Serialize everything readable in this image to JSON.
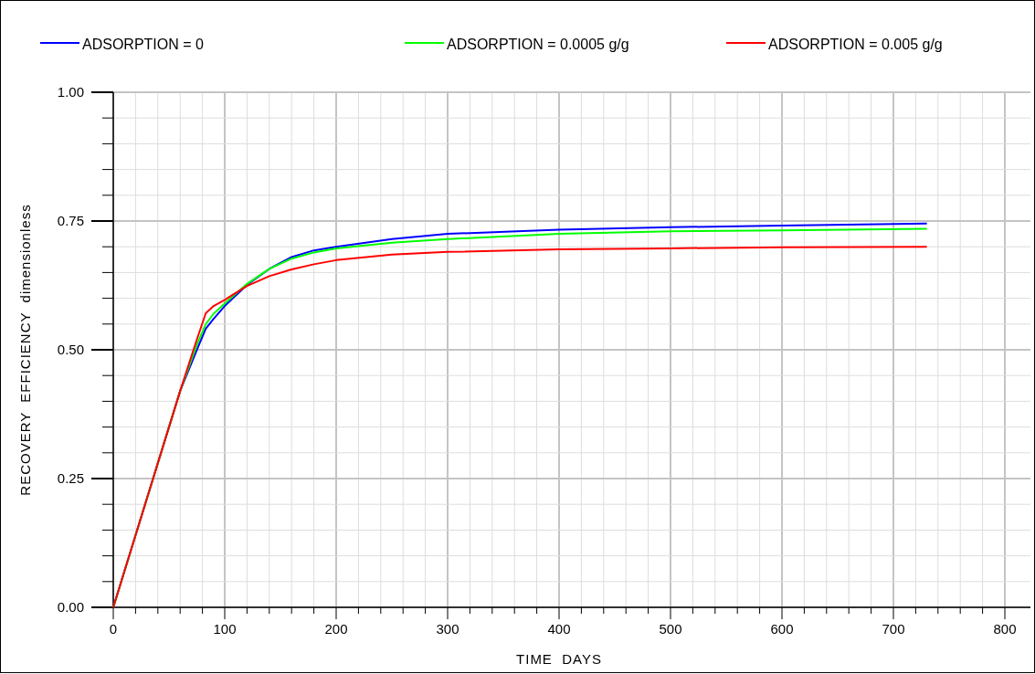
{
  "chart_data": {
    "type": "line",
    "xlabel": "TIME  DAYS",
    "ylabel": "RECOVERY  EFFICIENCY  dimensionless",
    "xlim": [
      0,
      800
    ],
    "ylim": [
      0,
      1
    ],
    "xticks": [
      0,
      {
        "value": 20,
        "label": null
      },
      {
        "value": 40,
        "label": null
      },
      {
        "value": 60,
        "label": null
      },
      {
        "value": 80,
        "label": null
      },
      100,
      {
        "value": 120,
        "label": null
      },
      {
        "value": 140,
        "label": null
      },
      {
        "value": 160,
        "label": null
      },
      {
        "value": 180,
        "label": null
      },
      200,
      {
        "value": 220,
        "label": null
      },
      {
        "value": 240,
        "label": null
      },
      {
        "value": 260,
        "label": null
      },
      {
        "value": 280,
        "label": null
      },
      300,
      {
        "value": 320,
        "label": null
      },
      {
        "value": 340,
        "label": null
      },
      {
        "value": 360,
        "label": null
      },
      {
        "value": 380,
        "label": null
      },
      400,
      {
        "value": 420,
        "label": null
      },
      {
        "value": 440,
        "label": null
      },
      {
        "value": 460,
        "label": null
      },
      {
        "value": 480,
        "label": null
      },
      500,
      {
        "value": 520,
        "label": null
      },
      {
        "value": 540,
        "label": null
      },
      {
        "value": 560,
        "label": null
      },
      {
        "value": 580,
        "label": null
      },
      600,
      {
        "value": 620,
        "label": null
      },
      {
        "value": 640,
        "label": null
      },
      {
        "value": 660,
        "label": null
      },
      {
        "value": 680,
        "label": null
      },
      700,
      {
        "value": 720,
        "label": null
      },
      {
        "value": 740,
        "label": null
      },
      {
        "value": 760,
        "label": null
      },
      {
        "value": 780,
        "label": null
      },
      800
    ],
    "yticks": [
      {
        "value": 0,
        "label": "0.00"
      },
      {
        "value": 0.05,
        "label": null
      },
      {
        "value": 0.1,
        "label": null
      },
      {
        "value": 0.15,
        "label": null
      },
      {
        "value": 0.2,
        "label": null
      },
      {
        "value": 0.25,
        "label": "0.25"
      },
      {
        "value": 0.3,
        "label": null
      },
      {
        "value": 0.35,
        "label": null
      },
      {
        "value": 0.4,
        "label": null
      },
      {
        "value": 0.45,
        "label": null
      },
      {
        "value": 0.5,
        "label": "0.50"
      },
      {
        "value": 0.55,
        "label": null
      },
      {
        "value": 0.6,
        "label": null
      },
      {
        "value": 0.65,
        "label": null
      },
      {
        "value": 0.7,
        "label": null
      },
      {
        "value": 0.75,
        "label": "0.75"
      },
      {
        "value": 0.8,
        "label": null
      },
      {
        "value": 0.85,
        "label": null
      },
      {
        "value": 0.9,
        "label": null
      },
      {
        "value": 0.95,
        "label": null
      },
      {
        "value": 1,
        "label": "1.00"
      }
    ],
    "grid": true,
    "legend": "top",
    "line_style": "solid",
    "marker": "none",
    "x": [
      0,
      60,
      75,
      83,
      90,
      100,
      120,
      140,
      160,
      180,
      200,
      250,
      300,
      400,
      500,
      600,
      730
    ],
    "series": [
      {
        "name": "ADSORPTION = 0",
        "color": "#0000ff",
        "values": [
          0,
          0.42,
          0.5,
          0.541,
          0.56,
          0.585,
          0.626,
          0.657,
          0.68,
          0.693,
          0.7,
          0.715,
          0.725,
          0.733,
          0.738,
          0.741,
          0.745
        ]
      },
      {
        "name": "ADSORPTION = 0.0005 g/g",
        "color": "#00ff00",
        "values": [
          0,
          0.42,
          0.51,
          0.55,
          0.57,
          0.59,
          0.628,
          0.657,
          0.677,
          0.689,
          0.697,
          0.708,
          0.715,
          0.725,
          0.73,
          0.732,
          0.735
        ]
      },
      {
        "name": "ADSORPTION = 0.005 g/g",
        "color": "#ff0000",
        "values": [
          0,
          0.42,
          0.52,
          0.571,
          0.585,
          0.597,
          0.624,
          0.643,
          0.656,
          0.666,
          0.674,
          0.685,
          0.69,
          0.695,
          0.697,
          0.699,
          0.7
        ]
      }
    ]
  }
}
